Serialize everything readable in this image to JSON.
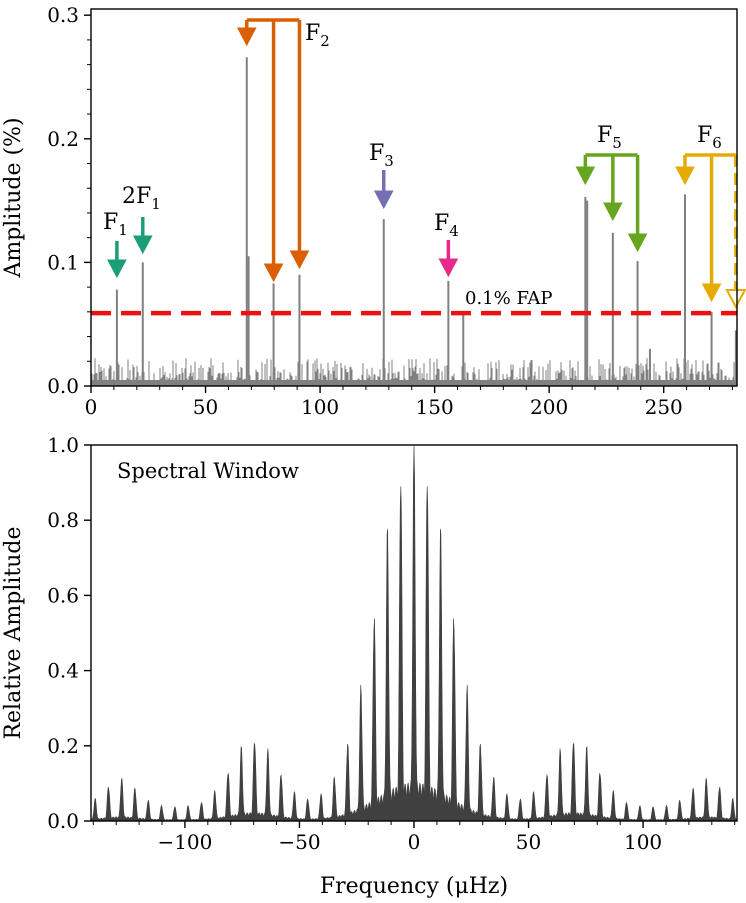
{
  "chart_data": [
    {
      "type": "line",
      "panel": "periodogram",
      "ylabel": "Amplitude (%)",
      "xlabel": "",
      "xlim": [
        0,
        282
      ],
      "ylim": [
        0,
        0.305
      ],
      "xticks": [
        0,
        50,
        100,
        150,
        200,
        250
      ],
      "yticks": [
        0.0,
        0.1,
        0.2,
        0.3
      ],
      "ytick_labels": [
        "0.0",
        "0.1",
        "0.2",
        "0.3"
      ],
      "grid": false,
      "threshold": {
        "label": "0.1% FAP",
        "value": 0.059,
        "color": "#ee1111"
      },
      "peaks": [
        {
          "x": 11.3,
          "y": 0.078
        },
        {
          "x": 22.6,
          "y": 0.1
        },
        {
          "x": 68.0,
          "y": 0.266
        },
        {
          "x": 68.8,
          "y": 0.105
        },
        {
          "x": 79.7,
          "y": 0.083
        },
        {
          "x": 91.0,
          "y": 0.09
        },
        {
          "x": 127.8,
          "y": 0.135
        },
        {
          "x": 156.0,
          "y": 0.085
        },
        {
          "x": 162.5,
          "y": 0.06
        },
        {
          "x": 215.8,
          "y": 0.153
        },
        {
          "x": 216.6,
          "y": 0.15
        },
        {
          "x": 227.8,
          "y": 0.124
        },
        {
          "x": 238.6,
          "y": 0.101
        },
        {
          "x": 244.0,
          "y": 0.03
        },
        {
          "x": 259.3,
          "y": 0.155
        },
        {
          "x": 270.9,
          "y": 0.06
        },
        {
          "x": 281.5,
          "y": 0.045
        }
      ],
      "annotations": [
        {
          "label": "F",
          "sub": "1",
          "color": "#1b9e77",
          "arrows": [
            11.3
          ]
        },
        {
          "label": "2F",
          "sub": "1",
          "color": "#1b9e77",
          "arrows": [
            22.6
          ]
        },
        {
          "label": "F",
          "sub": "2",
          "color": "#d95f02",
          "arrows": [
            68.0,
            79.7,
            91.0
          ]
        },
        {
          "label": "F",
          "sub": "3",
          "color": "#7570b3",
          "arrows": [
            127.8
          ]
        },
        {
          "label": "F",
          "sub": "4",
          "color": "#e7298a",
          "arrows": [
            156.0
          ]
        },
        {
          "label": "F",
          "sub": "5",
          "color": "#66a61e",
          "arrows": [
            215.8,
            227.8,
            238.6
          ]
        },
        {
          "label": "F",
          "sub": "6",
          "color": "#e6ab02",
          "arrows": [
            259.3,
            270.9,
            281.5
          ]
        }
      ],
      "line_color": "#808080"
    },
    {
      "type": "area",
      "panel": "spectral-window",
      "title": "Spectral Window",
      "xlabel": "Frequency (μHz)",
      "ylabel": "Relative Amplitude",
      "xlim": [
        -141,
        141
      ],
      "ylim": [
        0,
        1.0
      ],
      "xticks": [
        -100,
        -50,
        0,
        50,
        100
      ],
      "xtick_labels": [
        "−100",
        "−50",
        "0",
        "50",
        "100"
      ],
      "yticks": [
        0.0,
        0.2,
        0.4,
        0.6,
        0.8,
        1.0
      ],
      "ytick_labels": [
        "0.0",
        "0.2",
        "0.4",
        "0.6",
        "0.8",
        "1.0"
      ],
      "grid": false,
      "alias_spacing": 5.8,
      "main_lobes": [
        {
          "x": 0,
          "y": 1.0
        },
        {
          "x": -11.5,
          "y": 0.92
        },
        {
          "x": 11.5,
          "y": 0.92
        },
        {
          "x": -5.8,
          "y": 0.82
        },
        {
          "x": 5.8,
          "y": 0.82
        },
        {
          "x": -23,
          "y": 0.62
        },
        {
          "x": 23,
          "y": 0.62
        }
      ],
      "side_lobes": [
        {
          "x": -70,
          "y": 0.27
        },
        {
          "x": 70,
          "y": 0.27
        },
        {
          "x": -130,
          "y": 0.12
        },
        {
          "x": 130,
          "y": 0.12
        }
      ],
      "fill_color": "#404040"
    }
  ]
}
